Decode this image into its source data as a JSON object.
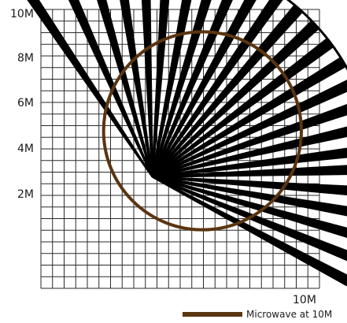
{
  "chart_data": {
    "type": "diagram",
    "x_range": [
      0,
      10
    ],
    "y_range": [
      0,
      10
    ],
    "grid": true,
    "y_tick_labels": [
      "10M",
      "8M",
      "6M",
      "4M",
      "2M"
    ],
    "x_tick_label": "10M",
    "legend": {
      "label": "Microwave at 10M",
      "color": "#5a3510",
      "placement": "bottom-right"
    },
    "microwave_circle": {
      "center": [
        5.8,
        5.65
      ],
      "radius": 3.55
    },
    "sensor_origin": [
      4.0,
      4.0
    ],
    "coverage_radius": 8.0,
    "coverage_start_angle_deg": 90,
    "coverage_end_angle_deg": 0,
    "beams": [
      {
        "angle": -28
      },
      {
        "angle": -22
      },
      {
        "angle": -16
      },
      {
        "angle": -10
      },
      {
        "angle": -4
      },
      {
        "angle": 2
      },
      {
        "angle": 7
      },
      {
        "angle": 13
      },
      {
        "angle": 19
      },
      {
        "angle": 25
      },
      {
        "angle": 31
      },
      {
        "angle": 37
      },
      {
        "angle": 43
      },
      {
        "angle": 49
      },
      {
        "angle": 55
      },
      {
        "angle": 61
      },
      {
        "angle": 67
      },
      {
        "angle": 73
      },
      {
        "angle": 79
      },
      {
        "angle": 86
      },
      {
        "angle": 92
      },
      {
        "angle": 99
      },
      {
        "angle": 106
      },
      {
        "angle": 114
      },
      {
        "angle": 124
      }
    ],
    "beam_color": "#000000"
  }
}
